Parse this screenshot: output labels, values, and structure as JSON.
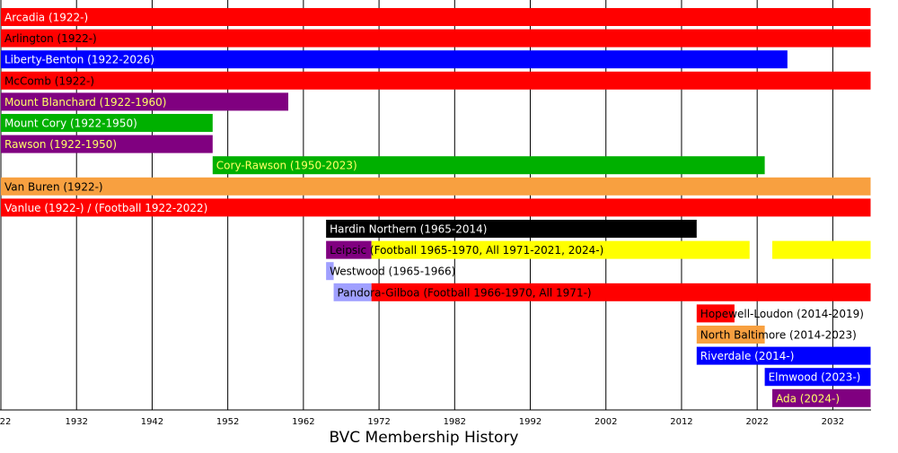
{
  "chart_data": {
    "type": "timeline",
    "title": "BVC Membership History",
    "xlim": [
      1922,
      2037
    ],
    "xticks": [
      {
        "value": 1922,
        "label": "22"
      },
      1932,
      1942,
      1952,
      1962,
      1972,
      1982,
      1992,
      2002,
      2012,
      2022,
      2032
    ],
    "grid": true,
    "rows": [
      {
        "label": "Arcadia (1922-)",
        "text_color": "#ffffff",
        "segments": [
          {
            "start": 1922,
            "end": 2037,
            "color": "#ff0000"
          }
        ]
      },
      {
        "label": "Arlington (1922-)",
        "text_color": "#000000",
        "segments": [
          {
            "start": 1922,
            "end": 2037,
            "color": "#ff0000"
          }
        ]
      },
      {
        "label": "Liberty-Benton (1922-2026)",
        "text_color": "#ffffff",
        "segments": [
          {
            "start": 1922,
            "end": 2026,
            "color": "#0000ff"
          }
        ]
      },
      {
        "label": "McComb (1922-)",
        "text_color": "#000000",
        "segments": [
          {
            "start": 1922,
            "end": 2037,
            "color": "#ff0000"
          }
        ]
      },
      {
        "label": "Mount Blanchard (1922-1960)",
        "text_color": "#ffff66",
        "segments": [
          {
            "start": 1922,
            "end": 1960,
            "color": "#800080"
          }
        ]
      },
      {
        "label": "Mount Cory (1922-1950)",
        "text_color": "#ffffff",
        "segments": [
          {
            "start": 1922,
            "end": 1950,
            "color": "#00b000"
          }
        ]
      },
      {
        "label": "Rawson (1922-1950)",
        "text_color": "#ffff66",
        "segments": [
          {
            "start": 1922,
            "end": 1950,
            "color": "#800080"
          }
        ]
      },
      {
        "label": "Cory-Rawson (1950-2023)",
        "text_color": "#ffff66",
        "segments": [
          {
            "start": 1950,
            "end": 2023,
            "color": "#00b000"
          }
        ]
      },
      {
        "label": "Van Buren (1922-)",
        "text_color": "#000000",
        "segments": [
          {
            "start": 1922,
            "end": 2037,
            "color": "#f8a040"
          }
        ]
      },
      {
        "label": "Vanlue (1922-) / (Football 1922-2022)",
        "text_color": "#ffffff",
        "segments": [
          {
            "start": 1922,
            "end": 2037,
            "color": "#ff0000"
          }
        ]
      },
      {
        "label": "Hardin Northern (1965-2014)",
        "text_color": "#ffffff",
        "segments": [
          {
            "start": 1965,
            "end": 2014,
            "color": "#000000"
          }
        ]
      },
      {
        "label": "Leipsic (Football 1965-1970, All 1971-2021, 2024-)",
        "text_color": "#000000",
        "segments": [
          {
            "start": 1965,
            "end": 1971,
            "color": "#800080"
          },
          {
            "start": 1971,
            "end": 2021,
            "color": "#ffff00"
          },
          {
            "start": 2024,
            "end": 2037,
            "color": "#ffff00"
          }
        ]
      },
      {
        "label": "Westwood (1965-1966)",
        "text_color": "#000000",
        "segments": [
          {
            "start": 1965,
            "end": 1966,
            "color": "#a0a0ff"
          }
        ]
      },
      {
        "label": "Pandora-Gilboa (Football 1966-1970, All 1971-)",
        "text_color": "#000000",
        "segments": [
          {
            "start": 1966,
            "end": 1971,
            "color": "#a0a0ff"
          },
          {
            "start": 1971,
            "end": 2037,
            "color": "#ff0000"
          }
        ]
      },
      {
        "label": "Hopewell-Loudon (2014-2019)",
        "text_color": "#000000",
        "segments": [
          {
            "start": 2014,
            "end": 2019,
            "color": "#ff0000"
          }
        ]
      },
      {
        "label": "North Baltimore (2014-2023)",
        "text_color": "#000000",
        "segments": [
          {
            "start": 2014,
            "end": 2023,
            "color": "#f8a040"
          }
        ]
      },
      {
        "label": "Riverdale (2014-)",
        "text_color": "#ffffff",
        "segments": [
          {
            "start": 2014,
            "end": 2037,
            "color": "#0000ff"
          }
        ]
      },
      {
        "label": "Elmwood (2023-)",
        "text_color": "#ffffff",
        "segments": [
          {
            "start": 2023,
            "end": 2037,
            "color": "#0000ff"
          }
        ]
      },
      {
        "label": "Ada (2024-)",
        "text_color": "#ffff66",
        "segments": [
          {
            "start": 2024,
            "end": 2037,
            "color": "#800080"
          }
        ]
      }
    ]
  }
}
